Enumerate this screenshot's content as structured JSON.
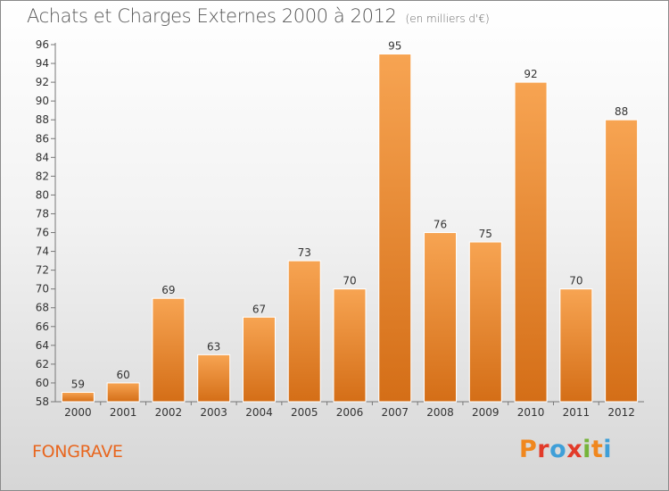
{
  "header": {
    "title": "Achats et Charges Externes 2000 à 2012",
    "unit": "(en milliers d'€)"
  },
  "footer": {
    "commune": "FONGRAVE",
    "logo": "Proxiti",
    "logo_colors": [
      "#f0871e",
      "#e23b2a",
      "#3f9fd8",
      "#e23b2a",
      "#76b43a",
      "#f0871e",
      "#3f9fd8"
    ]
  },
  "colors": {
    "bar_light": "#f7a452",
    "bar_dark": "#d46e17",
    "accent": "#e8661e"
  },
  "chart_data": {
    "type": "bar",
    "title": "Achats et Charges Externes 2000 à 2012",
    "subtitle": "(en milliers d'€)",
    "categories": [
      "2000",
      "2001",
      "2002",
      "2003",
      "2004",
      "2005",
      "2006",
      "2007",
      "2008",
      "2009",
      "2010",
      "2011",
      "2012"
    ],
    "values": [
      59,
      60,
      69,
      63,
      67,
      73,
      70,
      95,
      76,
      75,
      92,
      70,
      88
    ],
    "value_labels": [
      "59",
      "60",
      "69",
      "63",
      "67",
      "73",
      "70",
      "95",
      "76",
      "75",
      "92",
      "70",
      "88"
    ],
    "ylim": [
      58,
      96
    ],
    "yticks": [
      58,
      60,
      62,
      64,
      66,
      68,
      70,
      72,
      74,
      76,
      78,
      80,
      82,
      84,
      86,
      88,
      90,
      92,
      94,
      96
    ],
    "ytick_labels": [
      "58",
      "60",
      "62",
      "64",
      "66",
      "68",
      "70",
      "72",
      "74",
      "76",
      "78",
      "80",
      "82",
      "84",
      "86",
      "88",
      "90",
      "92",
      "94",
      "96"
    ],
    "grid": false,
    "legend": "none"
  }
}
